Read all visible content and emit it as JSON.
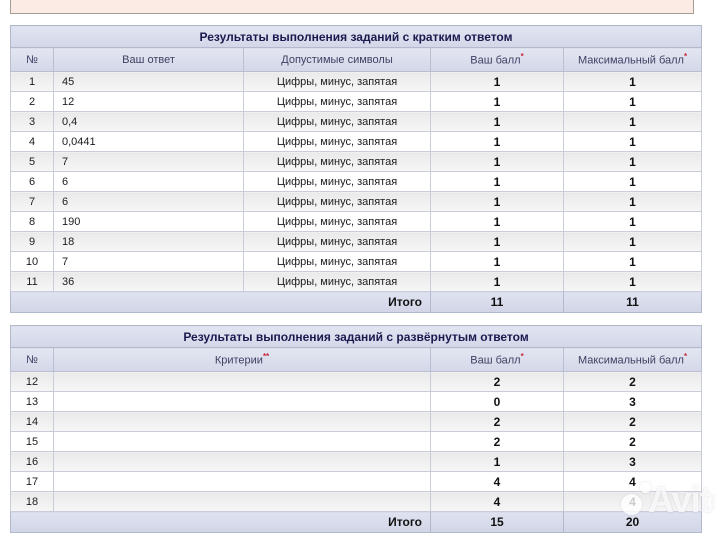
{
  "colors": {
    "banner_bg": "#fcebe4",
    "header_bg": "#d5d9e8",
    "accent_red": "#c9283c"
  },
  "short_answer_table": {
    "title": "Результаты выполнения заданий с кратким ответом",
    "headers": {
      "num": "№",
      "answer": "Ваш ответ",
      "symbols": "Допустимые символы",
      "score": "Ваш балл",
      "score_mark": "*",
      "max": "Максимальный балл",
      "max_mark": "*"
    },
    "rows": [
      {
        "num": "1",
        "answer": "45",
        "symbols": "Цифры, минус, запятая",
        "score": "1",
        "max": "1"
      },
      {
        "num": "2",
        "answer": "12",
        "symbols": "Цифры, минус, запятая",
        "score": "1",
        "max": "1"
      },
      {
        "num": "3",
        "answer": "0,4",
        "symbols": "Цифры, минус, запятая",
        "score": "1",
        "max": "1"
      },
      {
        "num": "4",
        "answer": "0,0441",
        "symbols": "Цифры, минус, запятая",
        "score": "1",
        "max": "1"
      },
      {
        "num": "5",
        "answer": "7",
        "symbols": "Цифры, минус, запятая",
        "score": "1",
        "max": "1"
      },
      {
        "num": "6",
        "answer": "6",
        "symbols": "Цифры, минус, запятая",
        "score": "1",
        "max": "1"
      },
      {
        "num": "7",
        "answer": "6",
        "symbols": "Цифры, минус, запятая",
        "score": "1",
        "max": "1"
      },
      {
        "num": "8",
        "answer": "190",
        "symbols": "Цифры, минус, запятая",
        "score": "1",
        "max": "1"
      },
      {
        "num": "9",
        "answer": "18",
        "symbols": "Цифры, минус, запятая",
        "score": "1",
        "max": "1"
      },
      {
        "num": "10",
        "answer": "7",
        "symbols": "Цифры, минус, запятая",
        "score": "1",
        "max": "1"
      },
      {
        "num": "11",
        "answer": "36",
        "symbols": "Цифры, минус, запятая",
        "score": "1",
        "max": "1"
      }
    ],
    "total": {
      "label": "Итого",
      "score": "11",
      "max": "11"
    }
  },
  "detailed_answer_table": {
    "title": "Результаты выполнения заданий с развёрнутым ответом",
    "headers": {
      "num": "№",
      "criteria": "Критерии",
      "criteria_mark": "**",
      "score": "Ваш балл",
      "score_mark": "*",
      "max": "Максимальный балл",
      "max_mark": "*"
    },
    "rows": [
      {
        "num": "12",
        "criteria": "",
        "score": "2",
        "max": "2"
      },
      {
        "num": "13",
        "criteria": "",
        "score": "0",
        "max": "3"
      },
      {
        "num": "14",
        "criteria": "",
        "score": "2",
        "max": "2"
      },
      {
        "num": "15",
        "criteria": "",
        "score": "2",
        "max": "2"
      },
      {
        "num": "16",
        "criteria": "",
        "score": "1",
        "max": "3"
      },
      {
        "num": "17",
        "criteria": "",
        "score": "4",
        "max": "4"
      },
      {
        "num": "18",
        "criteria": "",
        "score": "4",
        "max": "4"
      }
    ],
    "total": {
      "label": "Итого",
      "score": "15",
      "max": "20"
    }
  },
  "watermark": {
    "text": "Avito"
  }
}
